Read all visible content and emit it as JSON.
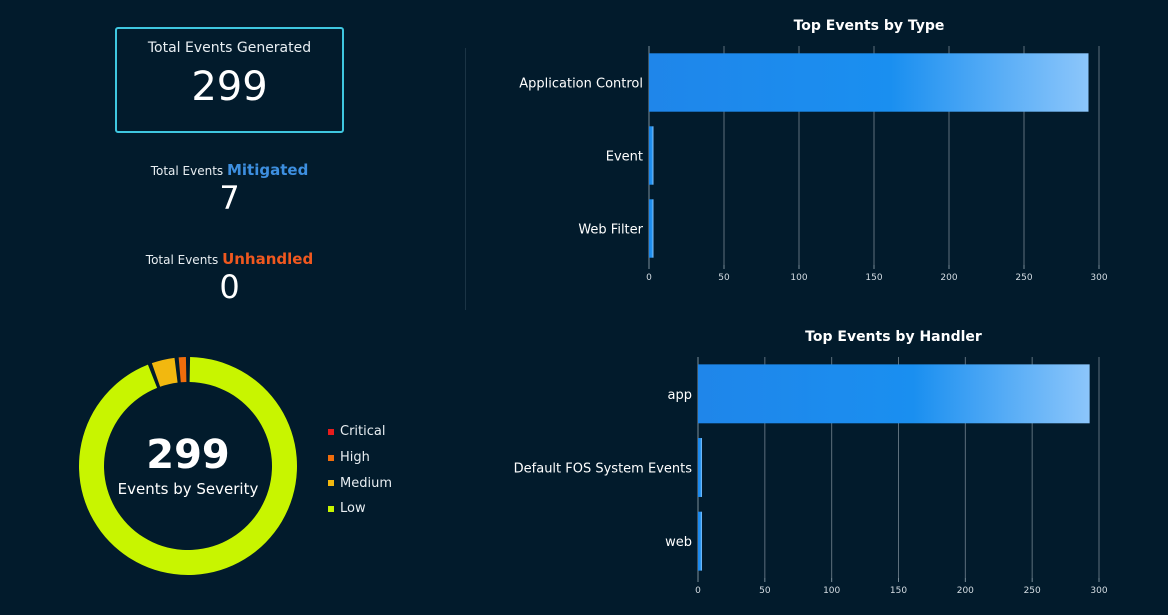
{
  "kpis": {
    "generated": {
      "label": "Total Events Generated",
      "value": "299"
    },
    "mitigated": {
      "prefix": "Total Events",
      "highlight": "Mitigated",
      "value": "7",
      "color": "#3d8fe0"
    },
    "unhandled": {
      "prefix": "Total Events",
      "highlight": "Unhandled",
      "value": "0",
      "color": "#f0581f"
    }
  },
  "severity": {
    "total": "299",
    "caption": "Events by Severity"
  },
  "chart_data": [
    {
      "type": "bar",
      "orientation": "horizontal",
      "title": "Top Events by Type",
      "categories": [
        "Application Control",
        "Event",
        "Web Filter"
      ],
      "values": [
        293,
        3,
        3
      ],
      "xlim": [
        0,
        300
      ],
      "xticks": [
        0,
        50,
        100,
        150,
        200,
        250,
        300
      ],
      "grid": true
    },
    {
      "type": "bar",
      "orientation": "horizontal",
      "title": "Top Events by Handler",
      "categories": [
        "app",
        "Default FOS System Events",
        "web"
      ],
      "values": [
        293,
        3,
        3
      ],
      "xlim": [
        0,
        300
      ],
      "xticks": [
        0,
        50,
        100,
        150,
        200,
        250,
        300
      ],
      "grid": true
    },
    {
      "type": "pie",
      "donut": true,
      "categories": [
        "Critical",
        "High",
        "Medium",
        "Low"
      ],
      "values": [
        0,
        5,
        12,
        282
      ],
      "colors": [
        "#e81c1c",
        "#f06d0c",
        "#f2b80f",
        "#c8f500"
      ],
      "legend": "right"
    }
  ]
}
